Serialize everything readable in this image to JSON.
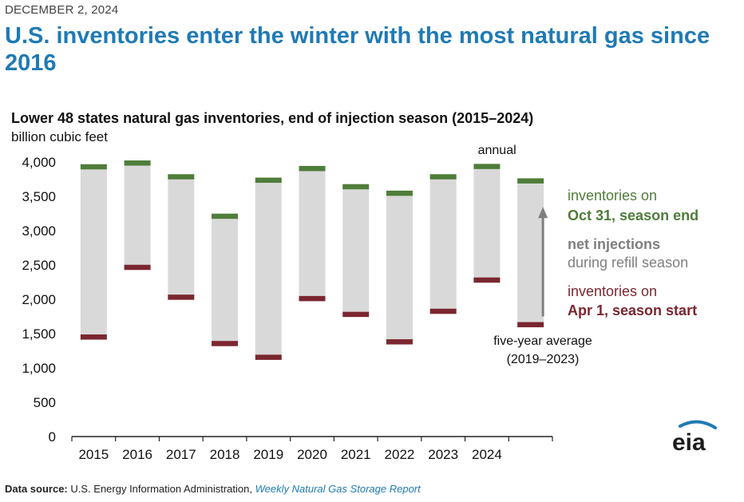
{
  "header": {
    "date": "DECEMBER 2, 2024",
    "headline": "U.S. inventories enter the winter with the most natural gas since 2016"
  },
  "chart_data": {
    "type": "bar",
    "title": "Lower 48 states natural gas inventories, end of injection season (2015–2024)",
    "ylabel": "billion cubic feet",
    "ylim": [
      0,
      4000
    ],
    "yticks": [
      "4,000",
      "3,500",
      "3,000",
      "2,500",
      "2,000",
      "1,500",
      "1,000",
      "500",
      "0"
    ],
    "categories": [
      "2015",
      "2016",
      "2017",
      "2018",
      "2019",
      "2020",
      "2021",
      "2022",
      "2023",
      "2024",
      ""
    ],
    "series": [
      {
        "name": "inventories on Apr 1, season start",
        "values": [
          1450,
          2465,
          2030,
          1355,
          1155,
          2010,
          1780,
          1380,
          1825,
          2280,
          1630
        ]
      },
      {
        "name": "inventories on Oct 31, season end",
        "values": [
          3930,
          3985,
          3785,
          3210,
          3735,
          3905,
          3640,
          3545,
          3785,
          3935,
          3725
        ]
      }
    ],
    "colors": {
      "end": "#4f7d3a",
      "start": "#7b2630",
      "injection": "#d9d9d9",
      "arrow": "#7f7f7f"
    },
    "legend": {
      "position": "right",
      "end_line1": "inventories on",
      "end_line2": "Oct 31, season end",
      "net_line1": "net injections",
      "net_line2": "during refill season",
      "start_line1": "inventories on",
      "start_line2": "Apr 1, season start"
    },
    "annotations": {
      "annual": "annual",
      "avg_line1": "five-year average",
      "avg_line2": "(2019–2023)"
    }
  },
  "footer": {
    "source_label": "Data source:",
    "source_org": "U.S. Energy Information Administration,",
    "source_report": "Weekly Natural Gas Storage Report"
  },
  "logo": {
    "text": "eia",
    "icon": "eia-logo-icon"
  }
}
